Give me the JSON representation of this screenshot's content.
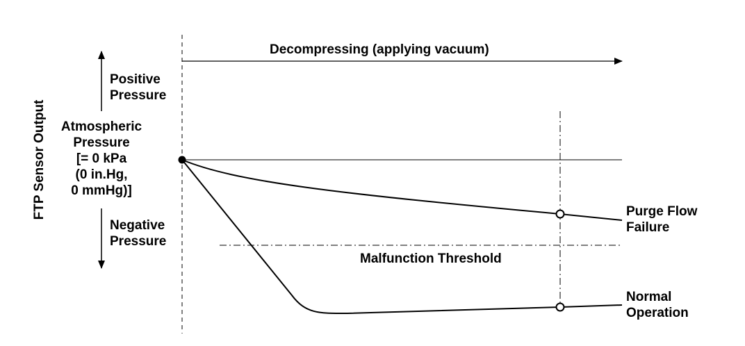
{
  "y_axis_label": "FTP Sensor Output",
  "positive_label": [
    "Positive",
    "Pressure"
  ],
  "negative_label": [
    "Negative",
    "Pressure"
  ],
  "atmospheric_label": [
    "Atmospheric",
    "Pressure",
    "[= 0 kPa",
    "(0 in.Hg,",
    "0 mmHg)]"
  ],
  "decompress_label": "Decompressing (applying vacuum)",
  "threshold_label": "Malfunction Threshold",
  "purge_label": [
    "Purge Flow",
    "Failure"
  ],
  "normal_label": [
    "Normal",
    "Operation"
  ]
}
